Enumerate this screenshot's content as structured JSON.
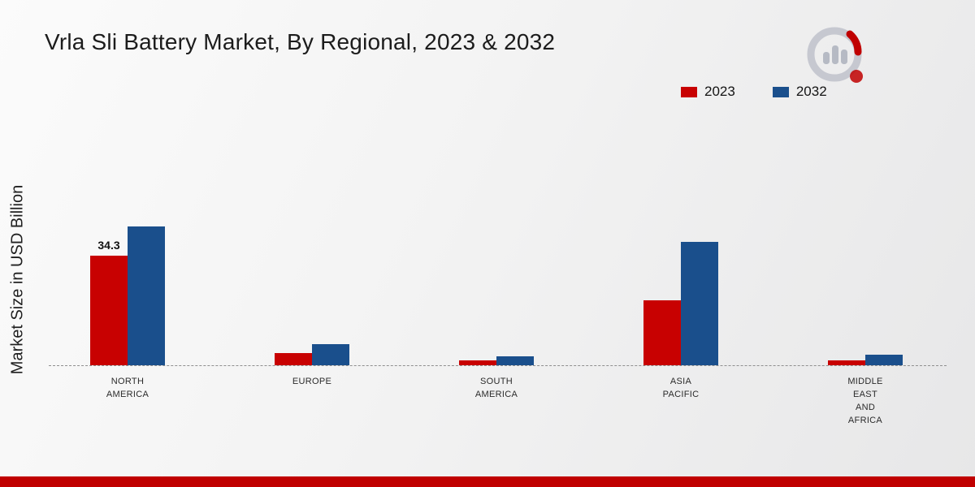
{
  "page": {
    "footer_color": "#c00000"
  },
  "chart_data": {
    "type": "bar",
    "title": "Vrla Sli Battery Market, By Regional, 2023 & 2032",
    "ylabel": "Market Size in USD Billion",
    "categories": [
      "North America",
      "Europe",
      "South America",
      "Asia Pacific",
      "Middle East and Africa"
    ],
    "category_labels": [
      [
        "NORTH",
        "AMERICA"
      ],
      [
        "EUROPE"
      ],
      [
        "SOUTH",
        "AMERICA"
      ],
      [
        "ASIA",
        "PACIFIC"
      ],
      [
        "MIDDLE",
        "EAST",
        "AND",
        "AFRICA"
      ]
    ],
    "series": [
      {
        "name": "2023",
        "color": "#c80101",
        "values": [
          34.3,
          3.9,
          1.4,
          20.2,
          1.5
        ]
      },
      {
        "name": "2032",
        "color": "#1a4f8c",
        "values": [
          43.4,
          6.5,
          2.7,
          38.6,
          3.2
        ]
      }
    ],
    "annotations": [
      {
        "series": "2023",
        "category": "North America",
        "text": "34.3"
      }
    ],
    "ylim": [
      0,
      50
    ],
    "grid": false,
    "baseline_style": "dashed",
    "legend_position": "top-right"
  }
}
